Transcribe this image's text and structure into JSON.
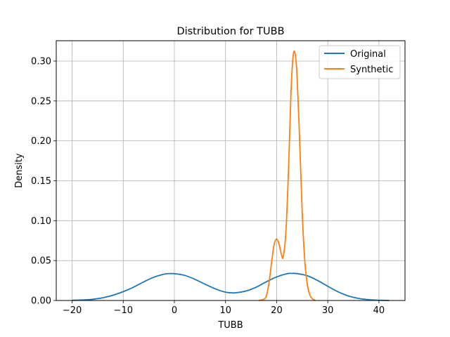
{
  "chart_data": {
    "type": "line",
    "title": "Distribution for TUBB",
    "xlabel": "TUBB",
    "ylabel": "Density",
    "xlim": [
      -23.1,
      45.1
    ],
    "ylim": [
      0,
      0.3255
    ],
    "xticks": [
      -20,
      -10,
      0,
      10,
      20,
      30,
      40
    ],
    "xtick_labels": [
      "−20",
      "−10",
      "0",
      "10",
      "20",
      "30",
      "40"
    ],
    "yticks": [
      0.0,
      0.05,
      0.1,
      0.15,
      0.2,
      0.25,
      0.3
    ],
    "ytick_labels": [
      "0.00",
      "0.05",
      "0.10",
      "0.15",
      "0.20",
      "0.25",
      "0.30"
    ],
    "grid": true,
    "legend_position": "top-right",
    "series": [
      {
        "name": "Original",
        "color": "#1f77b4",
        "x": [
          -20,
          -18,
          -16,
          -14,
          -12,
          -10,
          -8,
          -6,
          -4,
          -2,
          -1,
          0,
          2,
          4,
          6,
          8,
          10,
          11,
          12,
          14,
          16,
          18,
          20,
          22,
          23,
          24,
          26,
          28,
          30,
          32,
          34,
          36,
          38,
          40,
          42
        ],
        "y": [
          0.0002,
          0.0006,
          0.0015,
          0.0034,
          0.0066,
          0.0111,
          0.0167,
          0.0233,
          0.0292,
          0.033,
          0.0337,
          0.0336,
          0.0315,
          0.0266,
          0.0204,
          0.0146,
          0.0104,
          0.0097,
          0.0097,
          0.0119,
          0.0167,
          0.0235,
          0.0295,
          0.0335,
          0.034,
          0.0337,
          0.031,
          0.0251,
          0.0178,
          0.0109,
          0.0057,
          0.0026,
          0.001,
          0.0003,
          0.0001
        ]
      },
      {
        "name": "Synthetic",
        "color": "#ff7f0e",
        "x": [
          16.5,
          17.5,
          18.0,
          18.5,
          19.0,
          19.5,
          20.0,
          20.5,
          21.0,
          21.3,
          21.8,
          22.3,
          22.8,
          23.2,
          23.6,
          24.0,
          24.5,
          25.0,
          25.5,
          26.0,
          26.5,
          27.0,
          27.6
        ],
        "y": [
          0.0,
          0.0015,
          0.006,
          0.022,
          0.047,
          0.07,
          0.077,
          0.07,
          0.056,
          0.055,
          0.085,
          0.16,
          0.26,
          0.305,
          0.31,
          0.28,
          0.2,
          0.11,
          0.05,
          0.02,
          0.007,
          0.002,
          0.0
        ]
      }
    ]
  }
}
